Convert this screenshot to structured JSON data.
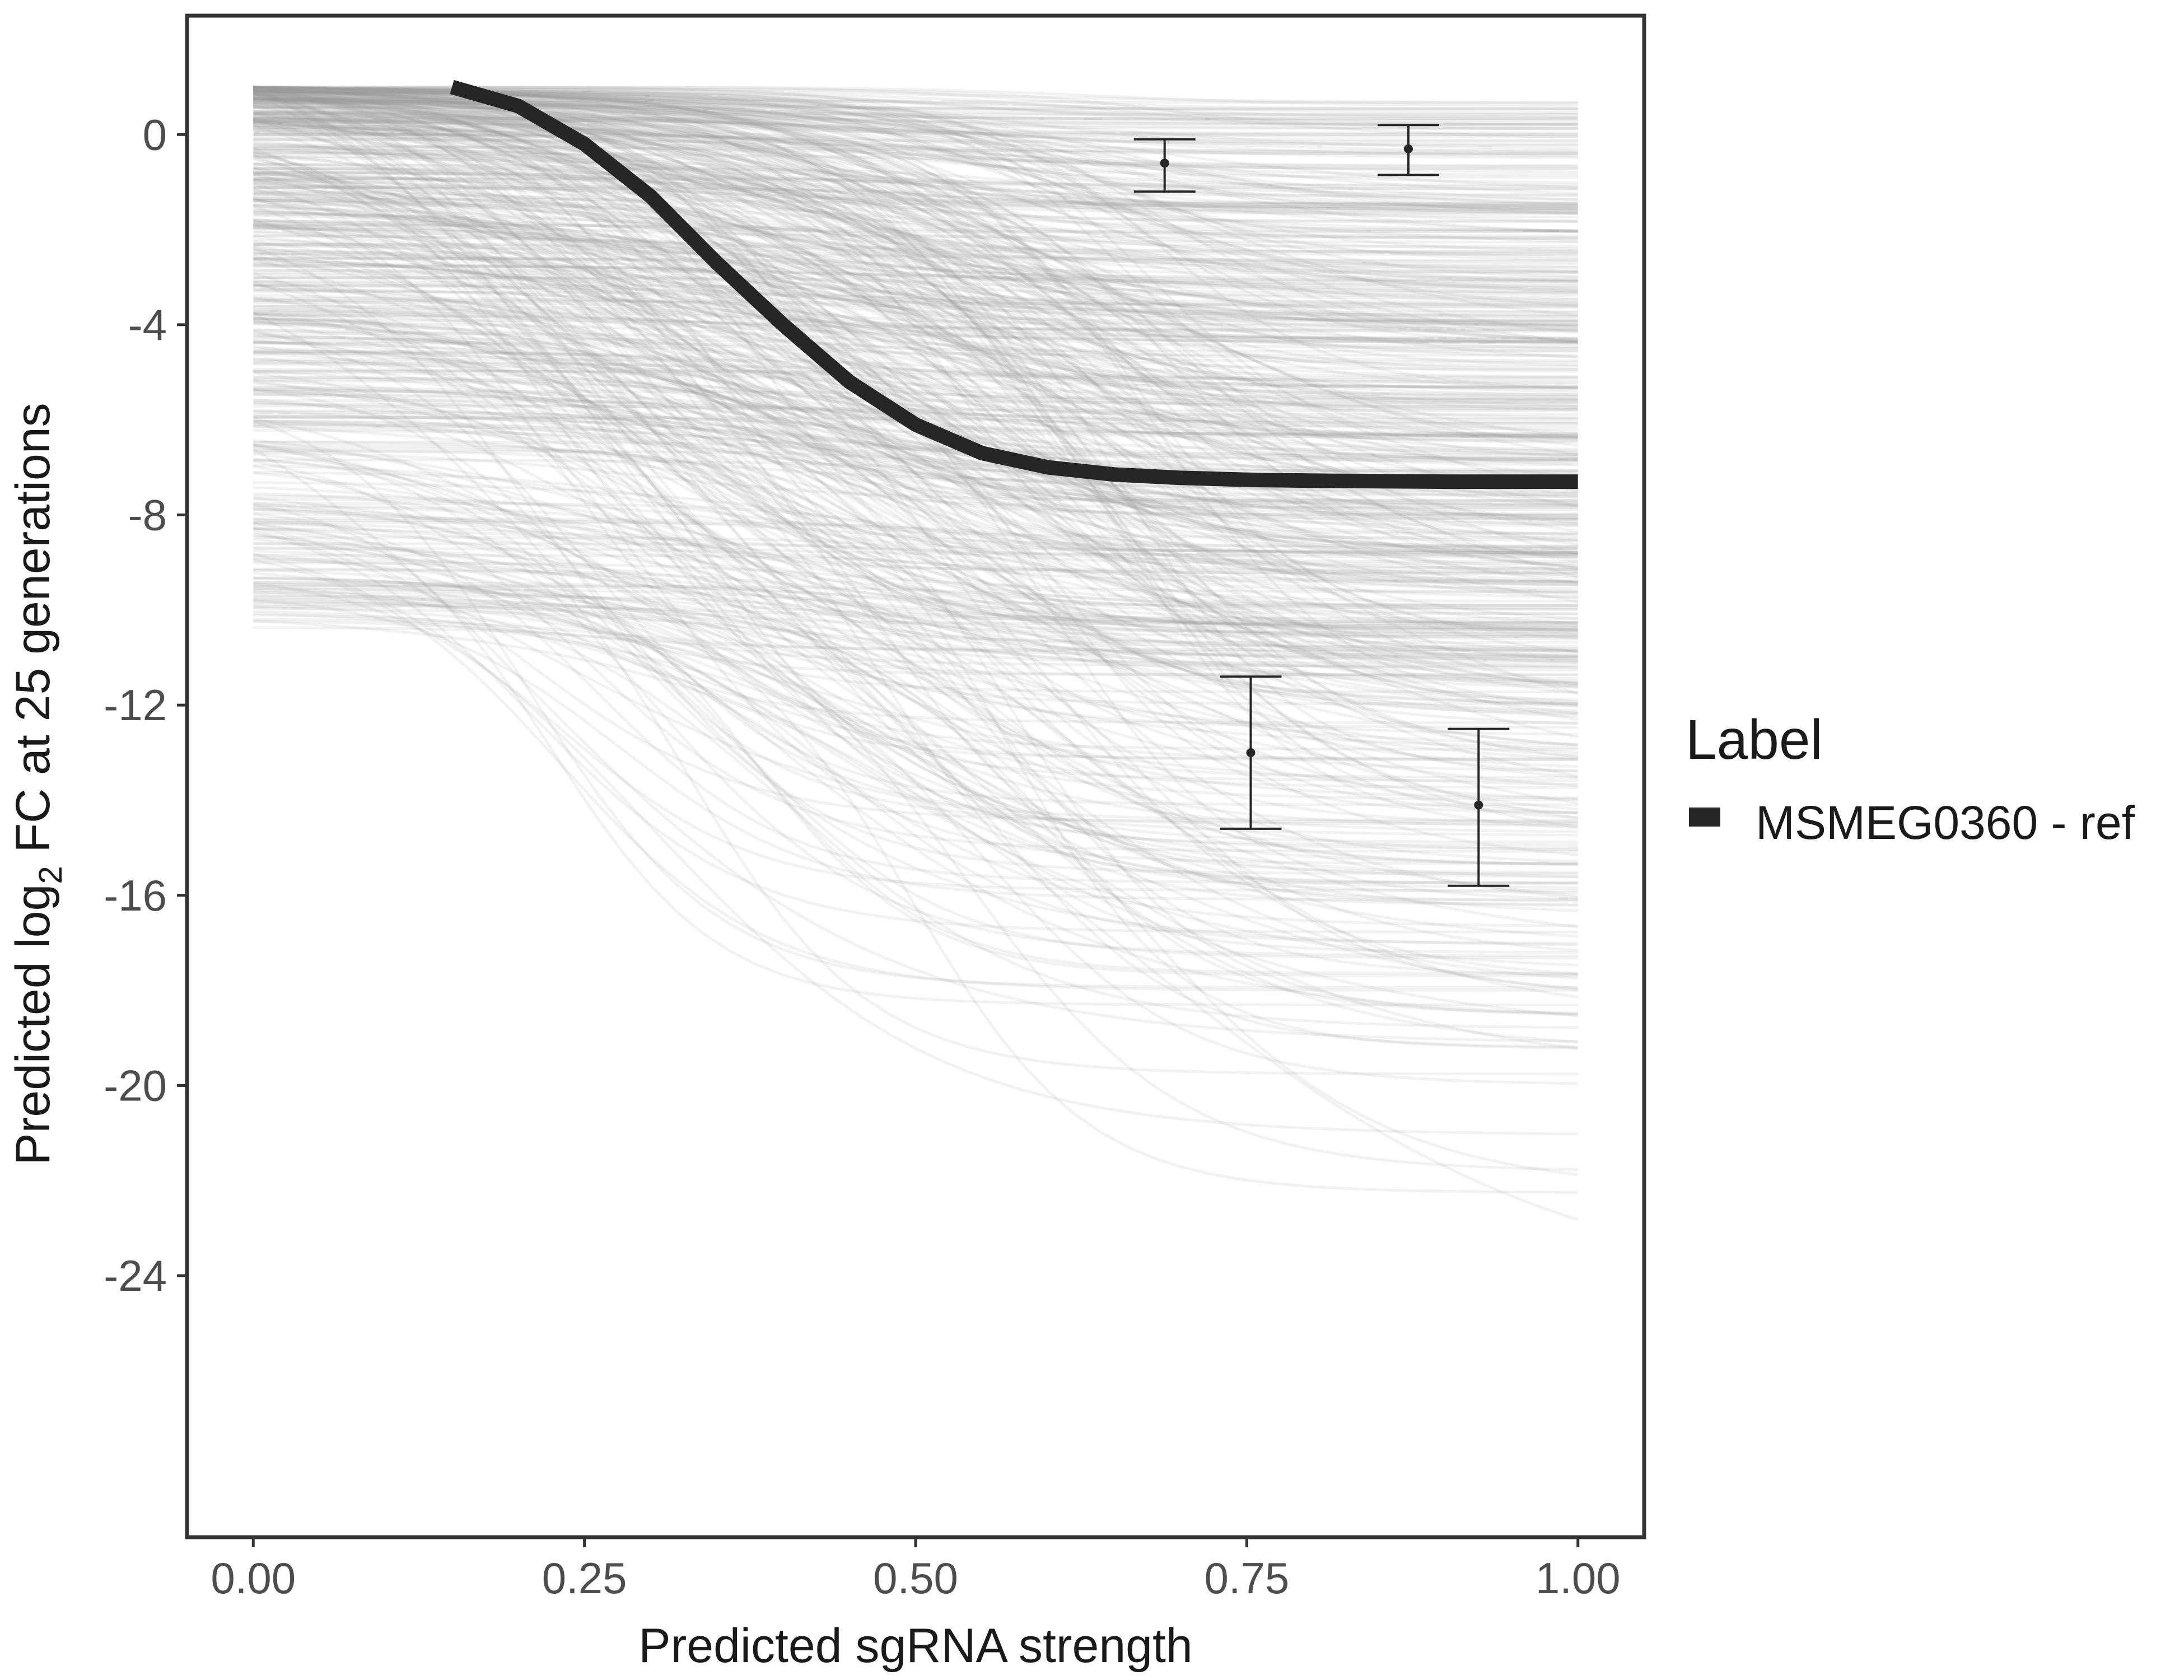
{
  "chart_data": {
    "type": "line",
    "title": "",
    "xlabel": "Predicted sgRNA strength",
    "ylabel_parts": {
      "before": "Predicted  log",
      "subscript": "2",
      "after": " FC at 25 generations"
    },
    "xlim": [
      -0.05,
      1.05
    ],
    "ylim": [
      -29.5,
      2.5
    ],
    "x_ticks": [
      0.0,
      0.25,
      0.5,
      0.75,
      1.0
    ],
    "x_tick_labels": [
      "0.00",
      "0.25",
      "0.50",
      "0.75",
      "1.00"
    ],
    "y_ticks": [
      0,
      -4,
      -8,
      -12,
      -16,
      -20,
      -24
    ],
    "y_tick_labels": [
      "0",
      "-4",
      "-8",
      "-12",
      "-16",
      "-20",
      "-24"
    ],
    "grid": false,
    "legend": {
      "title": "Label",
      "entries": [
        "MSMEG0360 - ref"
      ],
      "position": "right"
    },
    "background_curves": {
      "description": "posterior predictive sigmoid draws",
      "count": 600,
      "start_value_range": [
        -10.5,
        1.0
      ],
      "end_value_range": [
        -24.0,
        0.8
      ],
      "color": "#9e9e9e"
    },
    "series": [
      {
        "name": "MSMEG0360 - ref",
        "color": "#262626",
        "x": [
          0.15,
          0.2,
          0.25,
          0.3,
          0.35,
          0.4,
          0.45,
          0.5,
          0.55,
          0.6,
          0.65,
          0.7,
          0.75,
          0.8,
          0.85,
          0.9,
          0.95,
          1.0
        ],
        "y": [
          1.0,
          0.6,
          -0.2,
          -1.3,
          -2.7,
          -4.0,
          -5.2,
          -6.1,
          -6.7,
          -7.0,
          -7.15,
          -7.22,
          -7.26,
          -7.28,
          -7.29,
          -7.3,
          -7.3,
          -7.3
        ]
      }
    ],
    "error_bars": [
      {
        "x": 0.688,
        "y": -0.6,
        "ymin": -1.2,
        "ymax": -0.1
      },
      {
        "x": 0.872,
        "y": -0.3,
        "ymin": -0.85,
        "ymax": 0.2
      },
      {
        "x": 0.753,
        "y": -13.0,
        "ymin": -14.6,
        "ymax": -11.4
      },
      {
        "x": 0.925,
        "y": -14.1,
        "ymin": -15.8,
        "ymax": -12.5
      }
    ]
  }
}
